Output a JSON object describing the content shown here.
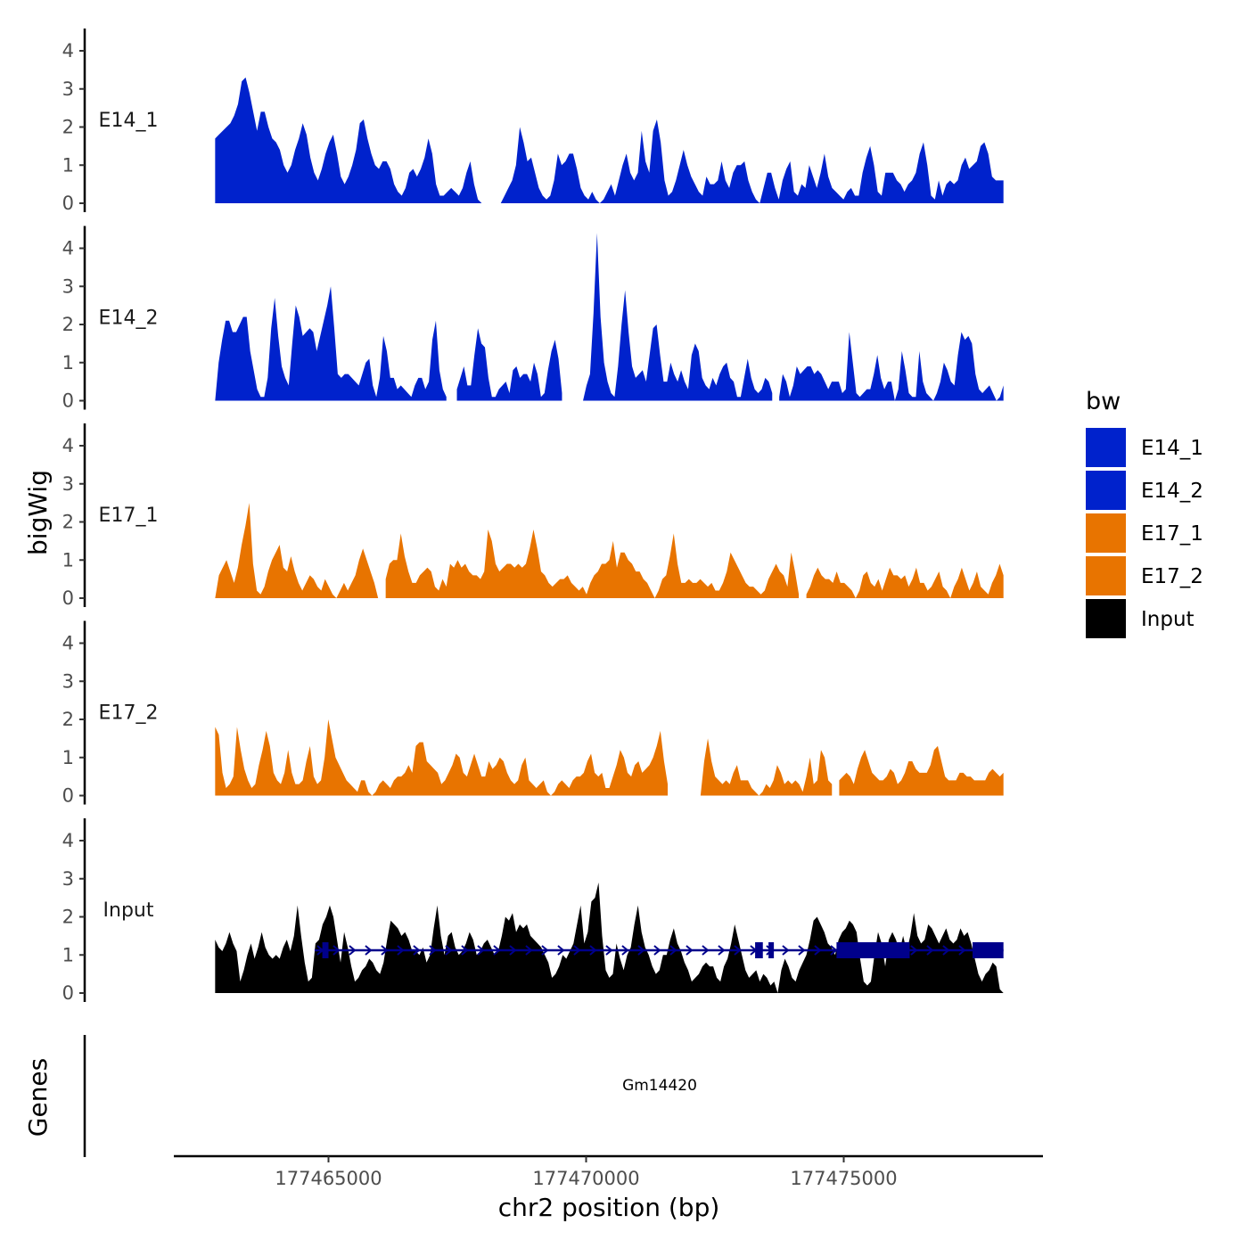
{
  "chart_data": {
    "type": "area",
    "x_axis": {
      "title": "chr2 position (bp)",
      "range": [
        177462400,
        177478400
      ],
      "ticks": [
        177465000,
        177470000,
        177475000
      ],
      "tick_labels": [
        "177465000",
        "177470000",
        "177475000"
      ]
    },
    "y_axis": {
      "title": "bigWig",
      "range": [
        0,
        4.5
      ],
      "ticks": [
        0,
        1,
        2,
        3,
        4
      ],
      "tick_labels": [
        "0",
        "1",
        "2",
        "3",
        "4"
      ]
    },
    "data_x_range": [
      177462800,
      177478100
    ],
    "tracks": [
      {
        "name": "E14_1",
        "color": "#0022CC",
        "values": [
          1.7,
          1.8,
          1.9,
          2.0,
          2.1,
          2.3,
          2.6,
          3.2,
          3.3,
          2.9,
          2.4,
          1.9,
          2.4,
          2.4,
          2.0,
          1.7,
          1.6,
          1.4,
          1.0,
          0.8,
          1.0,
          1.4,
          1.7,
          2.1,
          1.8,
          1.2,
          0.8,
          0.6,
          0.9,
          1.3,
          1.6,
          1.8,
          1.3,
          0.7,
          0.5,
          0.7,
          1.0,
          1.4,
          2.1,
          2.2,
          1.7,
          1.3,
          1.0,
          0.9,
          1.1,
          1.1,
          0.9,
          0.5,
          0.3,
          0.2,
          0.4,
          0.8,
          0.9,
          0.7,
          0.9,
          1.2,
          1.7,
          1.3,
          0.5,
          0.2,
          0.2,
          0.3,
          0.4,
          0.3,
          0.2,
          0.4,
          0.8,
          1.1,
          0.5,
          0.1,
          0.0,
          null,
          null,
          null,
          null,
          0.0,
          0.2,
          0.4,
          0.6,
          1.0,
          2.0,
          1.6,
          1.1,
          1.2,
          0.8,
          0.4,
          0.2,
          0.1,
          0.2,
          0.6,
          1.3,
          1.0,
          1.1,
          1.3,
          1.3,
          0.9,
          0.4,
          0.2,
          0.1,
          0.3,
          0.1,
          0.0,
          0.1,
          0.3,
          0.5,
          0.2,
          0.6,
          1.0,
          1.3,
          0.8,
          0.6,
          0.8,
          1.9,
          1.1,
          0.8,
          1.9,
          2.2,
          1.6,
          0.6,
          0.2,
          0.3,
          0.6,
          1.0,
          1.4,
          1.0,
          0.7,
          0.5,
          0.3,
          0.2,
          0.7,
          0.5,
          0.5,
          0.6,
          1.1,
          0.6,
          0.4,
          0.8,
          1.0,
          1.0,
          1.1,
          0.6,
          0.3,
          0.1,
          0.0,
          0.4,
          0.8,
          0.8,
          0.4,
          0.1,
          0.6,
          0.9,
          1.1,
          0.3,
          0.2,
          0.5,
          0.4,
          1.0,
          0.7,
          0.4,
          0.8,
          1.3,
          0.7,
          0.4,
          0.3,
          0.2,
          0.1,
          0.3,
          0.4,
          0.2,
          0.2,
          0.8,
          1.2,
          1.5,
          1.0,
          0.3,
          0.2,
          0.8,
          0.8,
          0.8,
          0.6,
          0.5,
          0.3,
          0.5,
          0.6,
          0.8,
          1.3,
          1.6,
          1.0,
          0.2,
          0.1,
          0.6,
          0.2,
          0.5,
          0.6,
          0.5,
          0.6,
          1.0,
          1.2,
          0.9,
          1.0,
          1.1,
          1.5,
          1.6,
          1.3,
          0.7,
          0.6,
          0.6,
          0.6
        ]
      },
      {
        "name": "E14_2",
        "color": "#0022CC",
        "values": [
          0.0,
          1.0,
          1.6,
          2.1,
          2.1,
          1.8,
          1.8,
          2.0,
          2.2,
          2.2,
          1.3,
          0.8,
          0.3,
          0.1,
          0.1,
          0.6,
          1.9,
          2.7,
          1.7,
          0.9,
          0.6,
          0.4,
          1.5,
          2.5,
          2.2,
          1.7,
          1.8,
          1.9,
          1.8,
          1.3,
          1.7,
          2.1,
          2.5,
          3.0,
          1.9,
          0.7,
          0.6,
          0.7,
          0.7,
          0.6,
          0.5,
          0.4,
          0.7,
          1.0,
          1.1,
          0.4,
          0.1,
          0.6,
          1.7,
          1.3,
          0.6,
          0.6,
          0.3,
          0.4,
          0.3,
          0.2,
          0.1,
          0.4,
          0.6,
          0.6,
          0.3,
          0.5,
          1.6,
          2.1,
          0.8,
          0.3,
          0.1,
          null,
          null,
          0.3,
          0.6,
          0.9,
          0.4,
          0.4,
          1.2,
          1.9,
          1.5,
          1.4,
          0.6,
          0.1,
          0.1,
          0.3,
          0.4,
          0.5,
          0.2,
          0.8,
          0.9,
          0.6,
          0.7,
          0.7,
          0.5,
          1.0,
          0.7,
          0.1,
          0.2,
          0.8,
          1.3,
          1.6,
          1.1,
          0.2,
          null,
          null,
          null,
          null,
          null,
          0.0,
          0.4,
          0.7,
          2.3,
          4.4,
          2.2,
          1.0,
          0.5,
          0.2,
          0.1,
          0.9,
          2.0,
          2.9,
          1.8,
          0.9,
          0.6,
          0.7,
          0.8,
          0.5,
          1.2,
          1.9,
          2.0,
          1.2,
          0.5,
          0.5,
          1.0,
          0.7,
          0.5,
          0.8,
          0.5,
          0.3,
          1.2,
          1.5,
          1.3,
          0.6,
          0.4,
          0.3,
          0.6,
          0.4,
          0.7,
          0.9,
          1.0,
          0.6,
          0.5,
          0.1,
          0.1,
          0.6,
          1.1,
          0.6,
          0.3,
          0.2,
          0.3,
          0.6,
          0.5,
          0.2,
          null,
          0.1,
          0.7,
          0.5,
          0.1,
          0.4,
          0.9,
          0.7,
          0.8,
          0.9,
          0.9,
          0.7,
          0.8,
          0.7,
          0.5,
          0.3,
          0.5,
          0.5,
          0.5,
          0.2,
          0.3,
          1.8,
          1.0,
          0.2,
          0.1,
          0.2,
          0.3,
          0.3,
          0.7,
          1.2,
          0.6,
          0.3,
          0.5,
          0.5,
          0.0,
          0.3,
          1.3,
          0.8,
          0.2,
          0.1,
          0.1,
          1.3,
          0.5,
          0.2,
          0.1,
          0.0,
          0.2,
          0.5,
          1.0,
          0.8,
          0.5,
          0.4,
          1.2,
          1.8,
          1.6,
          1.7,
          1.5,
          0.7,
          0.3,
          0.2,
          0.3,
          0.4,
          0.2,
          0.0,
          0.1,
          0.4
        ]
      },
      {
        "name": "E17_1",
        "color": "#E87400",
        "values": [
          0.0,
          0.6,
          0.8,
          1.0,
          0.7,
          0.4,
          0.8,
          1.4,
          1.9,
          2.5,
          0.9,
          0.2,
          0.1,
          0.3,
          0.7,
          1.0,
          1.2,
          1.4,
          0.8,
          0.7,
          1.1,
          0.7,
          0.4,
          0.2,
          0.4,
          0.6,
          0.5,
          0.3,
          0.2,
          0.5,
          0.3,
          0.1,
          0.0,
          0.2,
          0.4,
          0.2,
          0.4,
          0.6,
          1.0,
          1.3,
          1.0,
          0.7,
          0.4,
          0.0,
          null,
          0.5,
          0.9,
          1.0,
          1.0,
          1.7,
          1.1,
          0.7,
          0.4,
          0.4,
          0.6,
          0.7,
          0.8,
          0.7,
          0.3,
          0.2,
          0.5,
          0.3,
          0.9,
          0.8,
          1.0,
          0.8,
          0.9,
          0.7,
          0.6,
          0.6,
          0.5,
          0.7,
          1.8,
          1.5,
          0.9,
          0.7,
          0.8,
          0.9,
          0.9,
          0.8,
          0.9,
          0.8,
          0.9,
          1.3,
          1.8,
          1.3,
          0.7,
          0.6,
          0.4,
          0.3,
          0.4,
          0.5,
          0.5,
          0.6,
          0.4,
          0.3,
          0.2,
          0.3,
          0.1,
          0.4,
          0.6,
          0.7,
          0.9,
          0.9,
          1.0,
          1.5,
          0.8,
          1.2,
          1.2,
          1.0,
          0.9,
          0.7,
          0.7,
          0.5,
          0.4,
          0.2,
          0.0,
          0.2,
          0.5,
          0.6,
          1.1,
          1.7,
          0.9,
          0.4,
          0.4,
          0.5,
          0.4,
          0.4,
          0.5,
          0.4,
          0.3,
          0.4,
          0.2,
          0.2,
          0.4,
          0.7,
          1.2,
          1.0,
          0.8,
          0.6,
          0.4,
          0.3,
          0.3,
          0.2,
          0.1,
          0.2,
          0.5,
          0.7,
          0.9,
          0.7,
          0.6,
          0.3,
          1.2,
          0.7,
          0.1,
          null,
          0.1,
          0.3,
          0.6,
          0.8,
          0.6,
          0.5,
          0.5,
          0.4,
          0.7,
          0.4,
          0.4,
          0.3,
          0.2,
          0.0,
          0.2,
          0.6,
          0.7,
          0.4,
          0.3,
          0.5,
          0.2,
          0.5,
          0.8,
          0.6,
          0.6,
          0.5,
          0.6,
          0.3,
          0.5,
          0.8,
          0.4,
          0.4,
          0.2,
          0.3,
          0.5,
          0.7,
          0.3,
          0.2,
          0.0,
          0.3,
          0.5,
          0.8,
          0.5,
          0.2,
          0.4,
          0.7,
          0.3,
          0.2,
          0.1,
          0.4,
          0.6,
          0.9,
          0.6
        ]
      },
      {
        "name": "E17_2",
        "color": "#E87400",
        "values": [
          1.8,
          1.6,
          0.6,
          0.2,
          0.3,
          0.5,
          1.8,
          1.2,
          0.7,
          0.4,
          0.2,
          0.3,
          0.8,
          1.2,
          1.7,
          1.3,
          0.6,
          0.4,
          0.3,
          0.6,
          1.2,
          0.6,
          0.3,
          0.3,
          0.4,
          0.9,
          1.3,
          0.5,
          0.3,
          0.4,
          1.0,
          2.0,
          1.5,
          1.0,
          0.8,
          0.6,
          0.4,
          0.3,
          0.2,
          0.1,
          0.4,
          0.4,
          0.1,
          0.0,
          0.1,
          0.3,
          0.4,
          0.3,
          0.2,
          0.4,
          0.5,
          0.5,
          0.6,
          0.8,
          0.6,
          1.3,
          1.4,
          1.4,
          0.9,
          0.8,
          0.7,
          0.6,
          0.3,
          0.4,
          0.6,
          0.8,
          1.1,
          1.0,
          0.6,
          0.5,
          0.8,
          1.1,
          0.8,
          0.5,
          0.5,
          0.9,
          0.7,
          0.8,
          1.0,
          0.9,
          0.6,
          0.4,
          0.3,
          0.4,
          0.8,
          1.0,
          0.4,
          0.3,
          0.2,
          0.3,
          0.4,
          0.1,
          0.0,
          0.1,
          0.3,
          0.4,
          0.3,
          0.2,
          0.4,
          0.5,
          0.5,
          0.6,
          0.9,
          1.1,
          0.6,
          0.5,
          0.6,
          0.2,
          0.2,
          0.5,
          0.8,
          1.2,
          1.0,
          0.6,
          0.5,
          0.8,
          0.9,
          0.6,
          0.7,
          0.8,
          1.0,
          1.3,
          1.7,
          0.9,
          0.3,
          null,
          null,
          null,
          null,
          null,
          null,
          null,
          null,
          0.0,
          0.9,
          1.5,
          0.9,
          0.5,
          0.4,
          0.3,
          0.4,
          0.3,
          0.6,
          0.8,
          0.4,
          0.4,
          0.4,
          0.2,
          0.1,
          0.0,
          0.1,
          0.3,
          0.2,
          0.4,
          0.8,
          0.6,
          0.3,
          0.4,
          0.3,
          0.4,
          0.3,
          0.1,
          0.5,
          1.0,
          0.3,
          0.4,
          1.2,
          1.0,
          0.4,
          0.3,
          null,
          0.4,
          0.5,
          0.6,
          0.5,
          0.3,
          0.7,
          1.0,
          1.2,
          0.9,
          0.6,
          0.5,
          0.4,
          0.4,
          0.5,
          0.7,
          0.6,
          0.3,
          0.4,
          0.6,
          0.9,
          0.9,
          0.7,
          0.6,
          0.6,
          0.6,
          0.8,
          1.2,
          1.3,
          0.9,
          0.5,
          0.4,
          0.4,
          0.4,
          0.6,
          0.6,
          0.5,
          0.5,
          0.4,
          0.4,
          0.4,
          0.4,
          0.6,
          0.7,
          0.6,
          0.5,
          0.6
        ]
      },
      {
        "name": "Input",
        "color": "#000000",
        "values": [
          1.4,
          1.2,
          1.1,
          1.3,
          1.6,
          1.3,
          1.1,
          0.3,
          0.6,
          1.0,
          1.3,
          0.9,
          1.2,
          1.6,
          1.2,
          1.0,
          0.9,
          1.0,
          0.9,
          1.2,
          1.4,
          1.1,
          1.5,
          2.3,
          1.5,
          0.8,
          0.3,
          0.4,
          1.3,
          1.4,
          1.8,
          2.0,
          2.3,
          2.0,
          1.4,
          0.8,
          1.6,
          1.2,
          0.7,
          0.3,
          0.4,
          0.6,
          0.7,
          0.9,
          0.8,
          0.6,
          0.5,
          0.8,
          1.4,
          1.9,
          1.8,
          1.7,
          1.5,
          1.6,
          1.4,
          1.1,
          1.1,
          1.0,
          1.2,
          0.8,
          1.0,
          1.7,
          2.3,
          1.5,
          1.0,
          1.5,
          1.6,
          1.2,
          1.0,
          1.1,
          1.3,
          1.6,
          1.4,
          1.0,
          1.1,
          1.3,
          1.4,
          1.2,
          1.0,
          1.1,
          1.5,
          2.0,
          1.9,
          2.1,
          1.6,
          1.8,
          1.7,
          1.8,
          1.5,
          1.4,
          1.3,
          1.2,
          1.0,
          0.8,
          0.4,
          0.5,
          0.7,
          1.0,
          0.9,
          1.1,
          1.3,
          1.8,
          2.3,
          1.3,
          1.6,
          2.4,
          2.5,
          2.9,
          1.5,
          0.6,
          0.4,
          0.5,
          1.3,
          0.9,
          0.6,
          1.0,
          1.2,
          1.8,
          2.3,
          1.6,
          1.2,
          1.0,
          0.7,
          0.5,
          0.6,
          1.0,
          1.0,
          1.4,
          1.7,
          1.3,
          1.1,
          0.8,
          0.6,
          0.3,
          0.4,
          0.5,
          0.7,
          0.8,
          0.7,
          0.7,
          0.4,
          0.3,
          0.7,
          0.9,
          1.3,
          1.8,
          1.4,
          1.0,
          0.6,
          0.4,
          0.5,
          0.6,
          0.3,
          0.5,
          0.4,
          0.2,
          0.3,
          0.0,
          0.6,
          0.9,
          0.7,
          0.4,
          0.3,
          0.6,
          0.8,
          1.0,
          1.4,
          1.9,
          2.0,
          1.8,
          1.6,
          1.3,
          1.2,
          1.0,
          1.4,
          1.6,
          1.7,
          1.9,
          1.8,
          1.6,
          0.9,
          0.3,
          0.2,
          0.3,
          1.0,
          1.6,
          1.3,
          0.7,
          1.4,
          1.6,
          1.4,
          1.1,
          1.5,
          1.1,
          1.5,
          2.1,
          1.5,
          1.3,
          1.4,
          1.8,
          1.7,
          1.5,
          1.3,
          1.5,
          1.7,
          1.4,
          1.3,
          1.4,
          1.7,
          1.5,
          1.6,
          1.3,
          0.9,
          0.5,
          0.3,
          0.5,
          0.6,
          0.8,
          0.7,
          0.1,
          0.0
        ]
      }
    ],
    "legend": {
      "title": "bw",
      "placement": "right",
      "items": [
        {
          "label": "E14_1",
          "color": "#0022CC"
        },
        {
          "label": "E14_2",
          "color": "#0022CC"
        },
        {
          "label": "E17_1",
          "color": "#E87400"
        },
        {
          "label": "E17_2",
          "color": "#E87400"
        },
        {
          "label": "Input",
          "color": "#000000"
        }
      ]
    },
    "genes": {
      "title": "Genes",
      "color": "#00008B",
      "items": [
        {
          "name": "Gm14420",
          "start": 177464800,
          "end": 177478100,
          "strand": "+",
          "exons": [
            [
              177464880,
              177465000
            ],
            [
              177473280,
              177473430
            ],
            [
              177473540,
              177473640
            ],
            [
              177474860,
              177476280
            ],
            [
              177477500,
              177478100
            ]
          ]
        }
      ]
    }
  }
}
